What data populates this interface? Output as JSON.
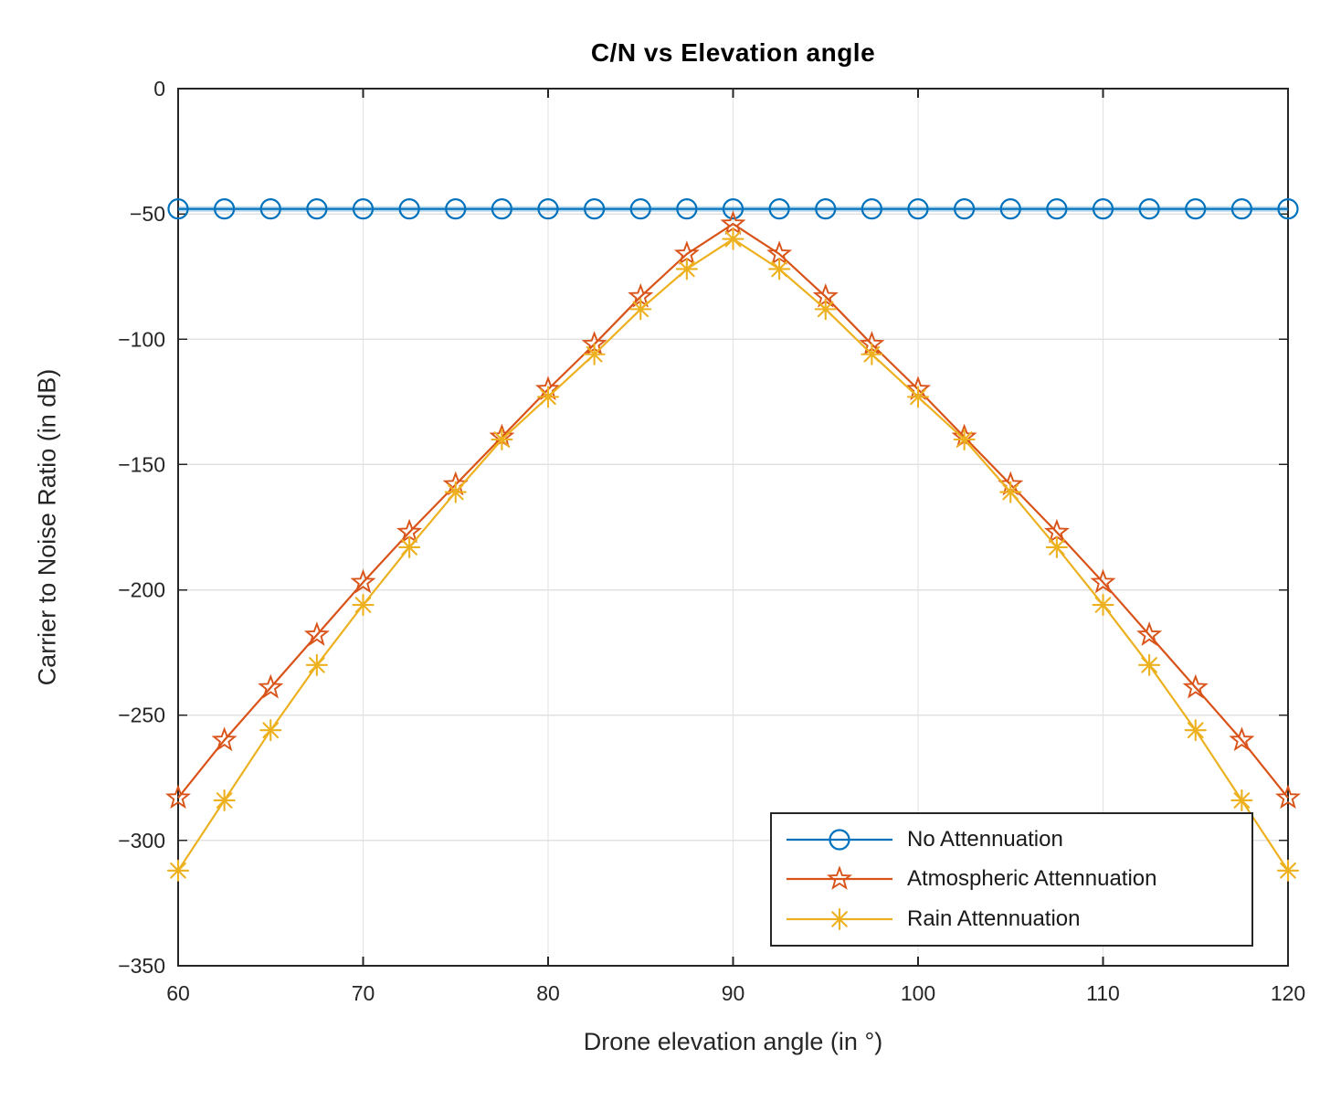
{
  "figure": {
    "background": "#FFFFFF"
  },
  "chart_data": {
    "type": "line",
    "title": "C/N vs Elevation angle",
    "xlabel": "Drone elevation angle (in °)",
    "ylabel": "Carrier to Noise Ratio (in dB)",
    "xlim": [
      60,
      120
    ],
    "ylim": [
      -350,
      0
    ],
    "xticks": [
      60,
      70,
      80,
      90,
      100,
      110,
      120
    ],
    "yticks": [
      0,
      -50,
      -100,
      -150,
      -200,
      -250,
      -300,
      -350
    ],
    "xtick_labels": [
      "60",
      "70",
      "80",
      "90",
      "100",
      "110",
      "120"
    ],
    "ytick_labels": [
      "0",
      "−50",
      "−100",
      "−150",
      "−200",
      "−250",
      "−300",
      "−350"
    ],
    "grid": true,
    "legend_position": "inside-bottom-right",
    "x": [
      60,
      62.5,
      65,
      67.5,
      70,
      72.5,
      75,
      77.5,
      80,
      82.5,
      85,
      87.5,
      90,
      92.5,
      95,
      97.5,
      100,
      102.5,
      105,
      107.5,
      110,
      112.5,
      115,
      117.5,
      120
    ],
    "series": [
      {
        "name": "No Attennuation",
        "color": "#0072BD",
        "marker": "circle",
        "values": [
          -48,
          -48,
          -48,
          -48,
          -48,
          -48,
          -48,
          -48,
          -48,
          -48,
          -48,
          -48,
          -48,
          -48,
          -48,
          -48,
          -48,
          -48,
          -48,
          -48,
          -48,
          -48,
          -48,
          -48,
          -48
        ]
      },
      {
        "name": "Atmospheric Attennuation",
        "color": "#D95319",
        "marker": "pentagram",
        "values": [
          -283,
          -260,
          -239,
          -218,
          -197,
          -177,
          -158,
          -139,
          -120,
          -102,
          -83,
          -66,
          -54,
          -66,
          -83,
          -102,
          -120,
          -139,
          -158,
          -177,
          -197,
          -218,
          -239,
          -260,
          -283
        ]
      },
      {
        "name": "Rain Attennuation",
        "color": "#EDB120",
        "marker": "asterisk",
        "values": [
          -312,
          -284,
          -256,
          -230,
          -206,
          -183,
          -161,
          -140,
          -123,
          -106,
          -88,
          -72,
          -60,
          -72,
          -88,
          -106,
          -123,
          -140,
          -161,
          -183,
          -206,
          -230,
          -256,
          -284,
          -312
        ]
      }
    ]
  },
  "colors": {
    "axis": "#262626",
    "grid": "#E2E2E2",
    "title": "#000000"
  }
}
